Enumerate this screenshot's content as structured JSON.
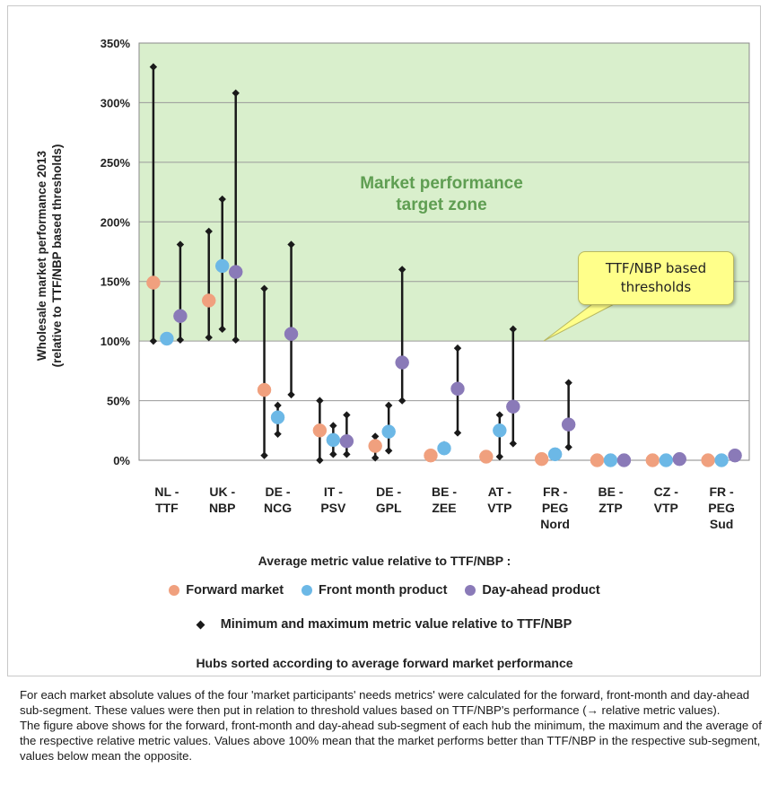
{
  "chart_data": {
    "type": "scatter",
    "ylabel": "Wholesale market performance 2013\n(relative to TTF/NBP based thresholds)",
    "ylim": [
      0,
      350
    ],
    "yticks": [
      "0%",
      "50%",
      "100%",
      "150%",
      "200%",
      "250%",
      "300%",
      "350%"
    ],
    "ytick_values": [
      0,
      50,
      100,
      150,
      200,
      250,
      300,
      350
    ],
    "target_zone": {
      "from": 100,
      "to": 350,
      "label": "Market performance\ntarget zone",
      "color": "#d9efcc"
    },
    "categories": [
      "NL -\nTTF",
      "UK -\nNBP",
      "DE -\nNCG",
      "IT -\nPSV",
      "DE -\nGPL",
      "BE -\nZEE",
      "AT -\nVTP",
      "FR -\nPEG\nNord",
      "BE -\nZTP",
      "CZ -\nVTP",
      "FR -\nPEG\nSud"
    ],
    "series": [
      {
        "name": "Forward market",
        "color": "#f0a07e",
        "values": [
          149,
          134,
          59,
          25,
          12,
          4,
          3,
          1,
          0,
          0,
          0
        ],
        "min": [
          100,
          103,
          4,
          0,
          2,
          3,
          2,
          0,
          0,
          0,
          0
        ],
        "max": [
          330,
          192,
          144,
          50,
          20,
          5,
          4,
          1,
          0,
          0,
          0
        ]
      },
      {
        "name": "Front month product",
        "color": "#6cb8e6",
        "values": [
          102,
          163,
          36,
          17,
          24,
          10,
          25,
          5,
          0,
          0,
          0
        ],
        "min": [
          102,
          110,
          22,
          5,
          8,
          8,
          3,
          4,
          0,
          0,
          0
        ],
        "max": [
          102,
          219,
          46,
          29,
          46,
          13,
          38,
          6,
          0,
          0,
          0
        ]
      },
      {
        "name": "Day-ahead product",
        "color": "#8a7ab8",
        "values": [
          121,
          158,
          106,
          16,
          82,
          60,
          45,
          30,
          0,
          1,
          4
        ],
        "min": [
          101,
          101,
          55,
          5,
          50,
          23,
          14,
          11,
          0,
          0,
          3
        ],
        "max": [
          181,
          308,
          181,
          38,
          160,
          94,
          110,
          65,
          0,
          1,
          5
        ]
      }
    ],
    "callout": "TTF/NBP based\nthresholds",
    "legend": {
      "title": "Average metric value relative to TTF/NBP :",
      "minmax": "Minimum and maximum metric value relative to TTF/NBP",
      "placement": "bottom"
    },
    "note": "Hubs sorted according to average forward market performance"
  },
  "description": {
    "p1": "For each market absolute values of the four 'market participants' needs metrics' were calculated for the forward, front-month and day-ahead sub-segment. These values were then put in relation to threshold values based on TTF/NBP's performance (→ relative metric values).",
    "p2": "The figure above shows for the forward, front-month and day-ahead sub-segment of each hub the minimum, the maximum and the average of the respective relative metric values. Values above 100% mean that the market performs better than TTF/NBP in the respective sub-segment, values below mean the opposite."
  }
}
